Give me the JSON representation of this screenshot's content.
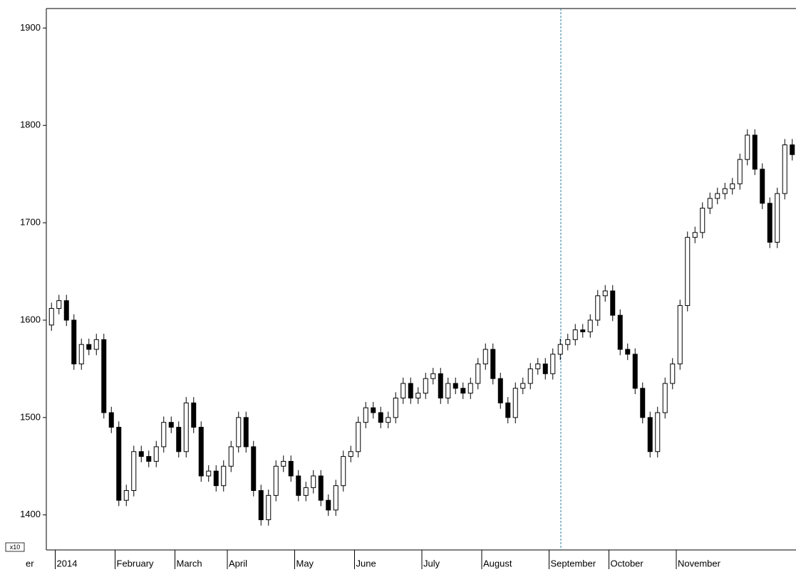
{
  "chart_data": {
    "type": "candlestick",
    "edge_label": "er",
    "scale_badge": "x10",
    "categories": [
      null,
      "2014",
      null,
      null,
      null,
      null,
      null,
      null,
      null,
      "February",
      null,
      null,
      null,
      null,
      null,
      null,
      null,
      "March",
      null,
      null,
      null,
      null,
      null,
      null,
      "April",
      null,
      null,
      null,
      null,
      null,
      null,
      null,
      null,
      "May",
      null,
      null,
      null,
      null,
      null,
      null,
      null,
      "June",
      null,
      null,
      null,
      null,
      null,
      null,
      null,
      null,
      "July",
      null,
      null,
      null,
      null,
      null,
      null,
      null,
      "August",
      null,
      null,
      null,
      null,
      null,
      null,
      null,
      null,
      "September",
      null,
      null,
      null,
      null,
      null,
      null,
      null,
      "October",
      null,
      null,
      null,
      null,
      null,
      null,
      null,
      null,
      "November",
      null,
      null,
      null,
      null,
      null,
      null,
      null,
      null,
      null,
      null,
      null,
      null,
      null,
      null,
      null
    ],
    "open": [
      1595,
      1612,
      1620,
      1600,
      1555,
      1575,
      1570,
      1580,
      1505,
      1490,
      1415,
      1425,
      1465,
      1460,
      1455,
      1470,
      1495,
      1490,
      1465,
      1515,
      1490,
      1440,
      1445,
      1430,
      1450,
      1470,
      1500,
      1470,
      1425,
      1395,
      1420,
      1450,
      1455,
      1440,
      1420,
      1428,
      1440,
      1415,
      1405,
      1430,
      1460,
      1465,
      1495,
      1510,
      1505,
      1495,
      1500,
      1520,
      1535,
      1520,
      1525,
      1540,
      1545,
      1520,
      1535,
      1530,
      1525,
      1535,
      1555,
      1570,
      1540,
      1515,
      1500,
      1530,
      1535,
      1550,
      1555,
      1545,
      1565,
      1575,
      1580,
      1590,
      1588,
      1600,
      1625,
      1630,
      1605,
      1570,
      1565,
      1530,
      1500,
      1465,
      1505,
      1535,
      1555,
      1615,
      1685,
      1690,
      1715,
      1725,
      1730,
      1735,
      1740,
      1765,
      1790,
      1755,
      1720,
      1680,
      1730,
      1780
    ],
    "high": [
      1618,
      1626,
      1626,
      1606,
      1581,
      1581,
      1586,
      1586,
      1511,
      1496,
      1431,
      1471,
      1471,
      1466,
      1476,
      1501,
      1501,
      1496,
      1521,
      1521,
      1496,
      1451,
      1451,
      1456,
      1476,
      1506,
      1506,
      1476,
      1431,
      1426,
      1456,
      1461,
      1461,
      1446,
      1434,
      1446,
      1446,
      1421,
      1436,
      1466,
      1471,
      1501,
      1516,
      1516,
      1511,
      1506,
      1526,
      1541,
      1541,
      1531,
      1546,
      1551,
      1551,
      1541,
      1541,
      1536,
      1541,
      1561,
      1576,
      1576,
      1546,
      1521,
      1536,
      1541,
      1556,
      1561,
      1561,
      1571,
      1581,
      1586,
      1596,
      1596,
      1606,
      1631,
      1636,
      1636,
      1611,
      1576,
      1571,
      1536,
      1506,
      1511,
      1541,
      1561,
      1621,
      1691,
      1696,
      1721,
      1731,
      1736,
      1741,
      1746,
      1771,
      1796,
      1796,
      1761,
      1726,
      1736,
      1786,
      1786
    ],
    "low": [
      1589,
      1606,
      1594,
      1549,
      1549,
      1564,
      1564,
      1499,
      1484,
      1409,
      1409,
      1419,
      1454,
      1449,
      1449,
      1464,
      1484,
      1459,
      1459,
      1484,
      1434,
      1434,
      1424,
      1424,
      1444,
      1464,
      1464,
      1419,
      1389,
      1389,
      1414,
      1444,
      1434,
      1414,
      1414,
      1422,
      1409,
      1399,
      1399,
      1424,
      1454,
      1459,
      1489,
      1499,
      1489,
      1489,
      1494,
      1514,
      1514,
      1514,
      1519,
      1534,
      1514,
      1514,
      1524,
      1519,
      1519,
      1529,
      1549,
      1534,
      1509,
      1494,
      1494,
      1524,
      1529,
      1544,
      1539,
      1539,
      1559,
      1569,
      1574,
      1582,
      1582,
      1594,
      1619,
      1599,
      1564,
      1559,
      1524,
      1494,
      1459,
      1459,
      1499,
      1529,
      1549,
      1609,
      1679,
      1684,
      1709,
      1719,
      1724,
      1729,
      1734,
      1759,
      1749,
      1714,
      1674,
      1674,
      1724,
      1764
    ],
    "close": [
      1612,
      1620,
      1600,
      1555,
      1575,
      1570,
      1580,
      1505,
      1490,
      1415,
      1425,
      1465,
      1460,
      1455,
      1470,
      1495,
      1490,
      1465,
      1515,
      1490,
      1440,
      1445,
      1430,
      1450,
      1470,
      1500,
      1470,
      1425,
      1395,
      1420,
      1450,
      1455,
      1440,
      1420,
      1428,
      1440,
      1415,
      1405,
      1430,
      1460,
      1465,
      1495,
      1510,
      1505,
      1495,
      1500,
      1520,
      1535,
      1520,
      1525,
      1540,
      1545,
      1520,
      1535,
      1530,
      1525,
      1535,
      1555,
      1570,
      1540,
      1515,
      1500,
      1530,
      1535,
      1550,
      1555,
      1545,
      1565,
      1575,
      1580,
      1590,
      1588,
      1600,
      1625,
      1630,
      1605,
      1570,
      1565,
      1530,
      1500,
      1465,
      1505,
      1535,
      1555,
      1615,
      1685,
      1690,
      1715,
      1725,
      1730,
      1735,
      1740,
      1765,
      1790,
      1755,
      1720,
      1680,
      1730,
      1780,
      1770
    ],
    "up_color": "#ffffff",
    "down_color": "#000000",
    "ylim": [
      1364,
      1920
    ],
    "yticks": [
      1400,
      1500,
      1600,
      1700,
      1800,
      1900
    ]
  }
}
